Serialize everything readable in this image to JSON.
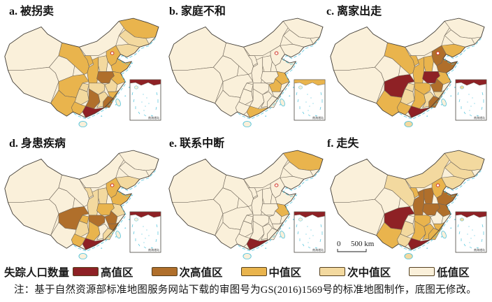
{
  "panels": [
    {
      "id": "a",
      "title": "a. 被拐卖",
      "provinces": {
        "xinjiang": "low",
        "xizang": "low",
        "qinghai": "low",
        "gansu": "mid",
        "ningxia": "mid",
        "neimenggu": "low",
        "heilongjiang": "mid",
        "jilin": "submid",
        "liaoning": "submid",
        "hebei": "mid",
        "shanxi": "submid",
        "shandong": "mid",
        "shaanxi": "mid",
        "henan": "subhigh",
        "jiangsu": "mid",
        "anhui": "submid",
        "hubei": "submid",
        "chongqing": "submid",
        "sichuan": "mid",
        "guizhou": "submid",
        "yunnan": "mid",
        "hunan": "subhigh",
        "jiangxi": "submid",
        "zhejiang": "mid",
        "fujian": "subhigh",
        "guangdong": "high",
        "guangxi": "mid",
        "hainan": "low",
        "taiwan": "low"
      }
    },
    {
      "id": "b",
      "title": "b. 家庭不和",
      "provinces": {
        "xinjiang": "low",
        "xizang": "low",
        "qinghai": "low",
        "gansu": "low",
        "ningxia": "low",
        "neimenggu": "low",
        "heilongjiang": "low",
        "jilin": "low",
        "liaoning": "low",
        "hebei": "low",
        "shanxi": "low",
        "shandong": "low",
        "shaanxi": "low",
        "henan": "low",
        "jiangsu": "mid",
        "anhui": "mid",
        "hubei": "low",
        "chongqing": "low",
        "sichuan": "low",
        "guizhou": "low",
        "yunnan": "low",
        "hunan": "low",
        "jiangxi": "low",
        "zhejiang": "low",
        "fujian": "low",
        "guangdong": "mid",
        "guangxi": "low",
        "hainan": "low",
        "taiwan": "low"
      }
    },
    {
      "id": "c",
      "title": "c. 离家出走",
      "provinces": {
        "xinjiang": "low",
        "xizang": "low",
        "qinghai": "low",
        "gansu": "mid",
        "ningxia": "mid",
        "neimenggu": "low",
        "heilongjiang": "low",
        "jilin": "low",
        "liaoning": "mid",
        "hebei": "subhigh",
        "shanxi": "mid",
        "shandong": "subhigh",
        "shaanxi": "mid",
        "henan": "high",
        "jiangsu": "mid",
        "anhui": "subhigh",
        "hubei": "mid",
        "chongqing": "submid",
        "sichuan": "high",
        "guizhou": "submid",
        "yunnan": "mid",
        "hunan": "mid",
        "jiangxi": "submid",
        "zhejiang": "submid",
        "fujian": "subhigh",
        "guangdong": "high",
        "guangxi": "mid",
        "hainan": "submid",
        "taiwan": "low"
      }
    },
    {
      "id": "d",
      "title": "d. 身患疾病",
      "provinces": {
        "xinjiang": "low",
        "xizang": "low",
        "qinghai": "low",
        "gansu": "low",
        "ningxia": "submid",
        "neimenggu": "low",
        "heilongjiang": "low",
        "jilin": "low",
        "liaoning": "submid",
        "hebei": "mid",
        "shanxi": "submid",
        "shandong": "mid",
        "shaanxi": "submid",
        "henan": "mid",
        "jiangsu": "submid",
        "anhui": "subhigh",
        "hubei": "subhigh",
        "chongqing": "mid",
        "sichuan": "subhigh",
        "guizhou": "submid",
        "yunnan": "low",
        "hunan": "mid",
        "jiangxi": "low",
        "zhejiang": "subhigh",
        "fujian": "submid",
        "guangdong": "high",
        "guangxi": "mid",
        "hainan": "low",
        "taiwan": "low"
      }
    },
    {
      "id": "e",
      "title": "e. 联系中断",
      "provinces": {
        "xinjiang": "low",
        "xizang": "low",
        "qinghai": "low",
        "gansu": "low",
        "ningxia": "low",
        "neimenggu": "low",
        "heilongjiang": "mid",
        "jilin": "low",
        "liaoning": "low",
        "hebei": "low",
        "shanxi": "low",
        "shandong": "low",
        "shaanxi": "low",
        "henan": "low",
        "jiangsu": "mid",
        "anhui": "low",
        "hubei": "low",
        "chongqing": "low",
        "sichuan": "low",
        "guizhou": "low",
        "yunnan": "low",
        "hunan": "low",
        "jiangxi": "low",
        "zhejiang": "low",
        "fujian": "low",
        "guangdong": "high",
        "guangxi": "low",
        "hainan": "low",
        "taiwan": "low"
      }
    },
    {
      "id": "f",
      "title": "f. 走失",
      "provinces": {
        "xinjiang": "low",
        "xizang": "low",
        "qinghai": "low",
        "gansu": "submid",
        "ningxia": "mid",
        "neimenggu": "submid",
        "heilongjiang": "submid",
        "jilin": "submid",
        "liaoning": "submid",
        "hebei": "mid",
        "shanxi": "subhigh",
        "shandong": "subhigh",
        "shaanxi": "subhigh",
        "henan": "subhigh",
        "jiangsu": "subhigh",
        "anhui": "low",
        "hubei": "mid",
        "chongqing": "low",
        "sichuan": "high",
        "guizhou": "submid",
        "yunnan": "mid",
        "hunan": "mid",
        "jiangxi": "mid",
        "zhejiang": "mid",
        "fujian": "mid",
        "guangdong": "high",
        "guangxi": "submid",
        "hainan": "submid",
        "taiwan": "low"
      }
    }
  ],
  "legend": {
    "title": "失踪人口数量",
    "items": [
      {
        "key": "high",
        "label": "高值区",
        "color": "#8e2125"
      },
      {
        "key": "subhigh",
        "label": "次高值区",
        "color": "#b06f2b"
      },
      {
        "key": "mid",
        "label": "中值区",
        "color": "#e9b44d"
      },
      {
        "key": "submid",
        "label": "次中值区",
        "color": "#f3d99f"
      },
      {
        "key": "low",
        "label": "低值区",
        "color": "#faf0da"
      }
    ]
  },
  "scale_bar": {
    "zero": "0",
    "distance": "500 km"
  },
  "inset_label": "南海诸岛",
  "note": "注：基于自然资源部标准地图服务网站下载的审图号为GS(2016)1569号的标准地图制作，底图无修改。",
  "map_colors": {
    "province_border": "#6f665a",
    "outline": "#45413a",
    "coast": "#4fc3dc",
    "capital_ring": "#cf3126"
  }
}
